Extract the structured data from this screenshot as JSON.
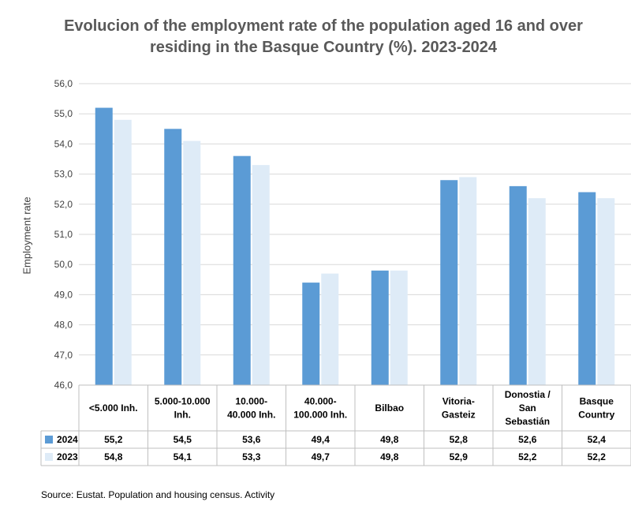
{
  "chart_data": {
    "type": "bar",
    "title": "Evolucion of the employment rate of the population aged 16 and over residing in the Basque Country (%). 2023-2024",
    "ylabel": "Employment rate",
    "xlabel": "",
    "ylim": [
      46,
      56
    ],
    "yticks": [
      "56,0",
      "55,0",
      "54,0",
      "53,0",
      "52,0",
      "51,0",
      "50,0",
      "49,0",
      "48,0",
      "47,0",
      "46,0"
    ],
    "categories": [
      [
        "<5.000 Inh."
      ],
      [
        "5.000-10.000",
        "Inh."
      ],
      [
        "10.000-",
        "40.000 Inh."
      ],
      [
        "40.000-",
        "100.000 Inh."
      ],
      [
        "Bilbao"
      ],
      [
        "Vitoria-",
        "Gasteiz"
      ],
      [
        "Donostia /",
        "San",
        "Sebastián"
      ],
      [
        "Basque",
        "Country"
      ]
    ],
    "series": [
      {
        "name": "2024",
        "color": "#5b9bd5",
        "values": [
          55.2,
          54.5,
          53.6,
          49.4,
          49.8,
          52.8,
          52.6,
          52.4
        ],
        "labels": [
          "55,2",
          "54,5",
          "53,6",
          "49,4",
          "49,8",
          "52,8",
          "52,6",
          "52,4"
        ]
      },
      {
        "name": "2023",
        "color": "#deebf7",
        "values": [
          54.8,
          54.1,
          53.3,
          49.7,
          49.8,
          52.9,
          52.2,
          52.2
        ],
        "labels": [
          "54,8",
          "54,1",
          "53,3",
          "49,7",
          "49,8",
          "52,9",
          "52,2",
          "52,2"
        ]
      }
    ],
    "grid": true,
    "legend": "data-table"
  },
  "source": "Source: Eustat. Population and housing census. Activity"
}
